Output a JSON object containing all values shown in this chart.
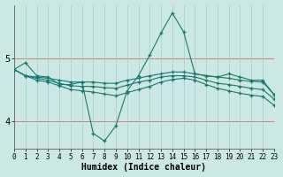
{
  "xlabel": "Humidex (Indice chaleur)",
  "bg_color": "#cce8e5",
  "line_color": "#1a7a6e",
  "hgrid_color": "#d08080",
  "vgrid_color": "#a8ccc8",
  "x_ticks": [
    0,
    1,
    2,
    3,
    4,
    5,
    6,
    7,
    8,
    9,
    10,
    11,
    12,
    13,
    14,
    15,
    16,
    17,
    18,
    19,
    20,
    21,
    22,
    23
  ],
  "y_ticks": [
    4,
    5
  ],
  "ylim": [
    3.55,
    5.85
  ],
  "xlim": [
    0,
    23
  ],
  "figsize": [
    3.2,
    2.0
  ],
  "lines": [
    {
      "x": [
        0,
        1,
        2,
        3,
        4,
        5,
        6,
        7,
        8,
        9,
        10,
        11,
        12,
        13,
        14,
        15,
        16,
        17,
        18,
        19,
        20,
        21,
        22,
        23
      ],
      "y": [
        4.82,
        4.93,
        4.72,
        4.7,
        4.58,
        4.58,
        4.62,
        3.8,
        3.68,
        3.92,
        4.48,
        4.72,
        5.05,
        5.4,
        5.72,
        5.42,
        4.75,
        4.72,
        4.7,
        4.75,
        4.7,
        4.65,
        4.65,
        4.42
      ]
    },
    {
      "x": [
        0,
        1,
        2,
        3,
        4,
        5,
        6,
        7,
        8,
        9,
        10,
        11,
        12,
        13,
        14,
        15,
        16,
        17,
        18,
        19,
        20,
        21,
        22,
        23
      ],
      "y": [
        4.82,
        4.72,
        4.7,
        4.68,
        4.65,
        4.62,
        4.62,
        4.62,
        4.6,
        4.6,
        4.65,
        4.68,
        4.72,
        4.75,
        4.78,
        4.78,
        4.75,
        4.72,
        4.7,
        4.68,
        4.65,
        4.63,
        4.62,
        4.42
      ]
    },
    {
      "x": [
        0,
        1,
        2,
        3,
        4,
        5,
        6,
        7,
        8,
        9,
        10,
        11,
        12,
        13,
        14,
        15,
        16,
        17,
        18,
        19,
        20,
        21,
        22,
        23
      ],
      "y": [
        4.82,
        4.72,
        4.68,
        4.65,
        4.6,
        4.56,
        4.55,
        4.55,
        4.53,
        4.52,
        4.57,
        4.62,
        4.65,
        4.7,
        4.72,
        4.72,
        4.7,
        4.65,
        4.6,
        4.58,
        4.55,
        4.52,
        4.5,
        4.35
      ]
    },
    {
      "x": [
        0,
        1,
        2,
        3,
        4,
        5,
        6,
        7,
        8,
        9,
        10,
        11,
        12,
        13,
        14,
        15,
        16,
        17,
        18,
        19,
        20,
        21,
        22,
        23
      ],
      "y": [
        4.82,
        4.72,
        4.65,
        4.62,
        4.56,
        4.5,
        4.48,
        4.46,
        4.43,
        4.4,
        4.45,
        4.5,
        4.55,
        4.62,
        4.66,
        4.68,
        4.65,
        4.58,
        4.52,
        4.48,
        4.44,
        4.41,
        4.39,
        4.25
      ]
    }
  ]
}
